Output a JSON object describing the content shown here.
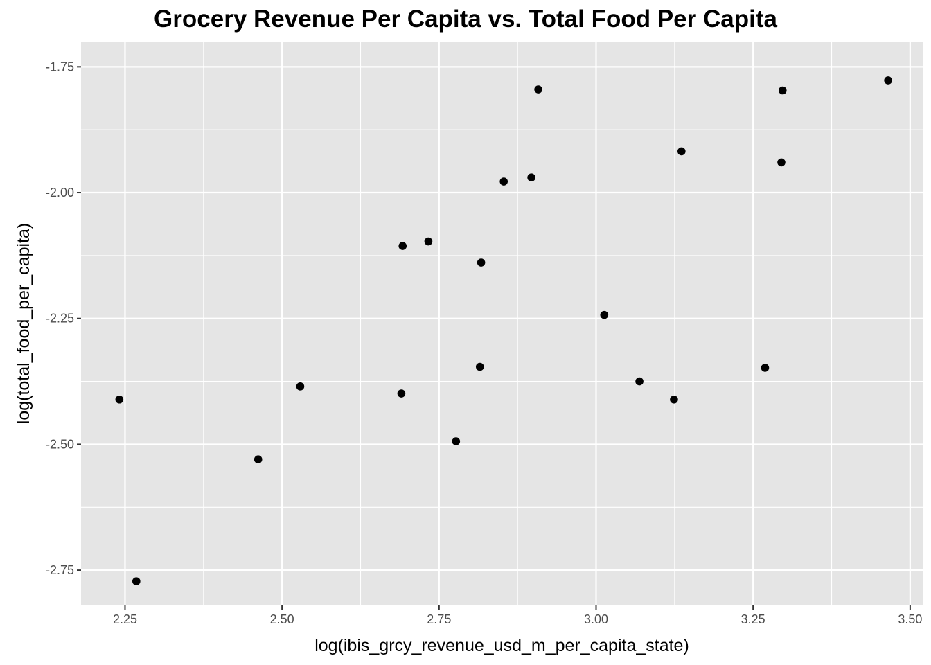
{
  "chart_data": {
    "type": "scatter",
    "title": "Grocery Revenue Per Capita vs. Total Food Per Capita",
    "xlabel": "log(ibis_grcy_revenue_usd_m_per_capita_state)",
    "ylabel": "log(total_food_per_capita)",
    "xlim": [
      2.18,
      3.52
    ],
    "ylim": [
      -2.82,
      -1.7
    ],
    "x_ticks": [
      2.25,
      2.5,
      2.75,
      3.0,
      3.25,
      3.5
    ],
    "x_tick_labels": [
      "2.25",
      "2.50",
      "2.75",
      "3.00",
      "3.25",
      "3.50"
    ],
    "y_ticks": [
      -1.75,
      -2.0,
      -2.25,
      -2.5,
      -2.75
    ],
    "y_tick_labels": [
      "-1.75",
      "-2.00",
      "-2.25",
      "-2.50",
      "-2.75"
    ],
    "grid": true,
    "background": "#e5e5e5",
    "grid_color": "#ffffff",
    "point_color": "#000000",
    "points": [
      {
        "x": 2.241,
        "y": -2.411
      },
      {
        "x": 2.268,
        "y": -2.772
      },
      {
        "x": 2.462,
        "y": -2.53
      },
      {
        "x": 2.529,
        "y": -2.385
      },
      {
        "x": 2.69,
        "y": -2.399
      },
      {
        "x": 2.692,
        "y": -2.106
      },
      {
        "x": 2.733,
        "y": -2.097
      },
      {
        "x": 2.777,
        "y": -2.494
      },
      {
        "x": 2.815,
        "y": -2.346
      },
      {
        "x": 2.817,
        "y": -2.139
      },
      {
        "x": 2.853,
        "y": -1.978
      },
      {
        "x": 2.897,
        "y": -1.97
      },
      {
        "x": 2.908,
        "y": -1.795
      },
      {
        "x": 3.013,
        "y": -2.243
      },
      {
        "x": 3.069,
        "y": -2.375
      },
      {
        "x": 3.124,
        "y": -2.411
      },
      {
        "x": 3.136,
        "y": -1.918
      },
      {
        "x": 3.269,
        "y": -2.348
      },
      {
        "x": 3.295,
        "y": -1.94
      },
      {
        "x": 3.297,
        "y": -1.797
      },
      {
        "x": 3.465,
        "y": -1.777
      }
    ]
  }
}
